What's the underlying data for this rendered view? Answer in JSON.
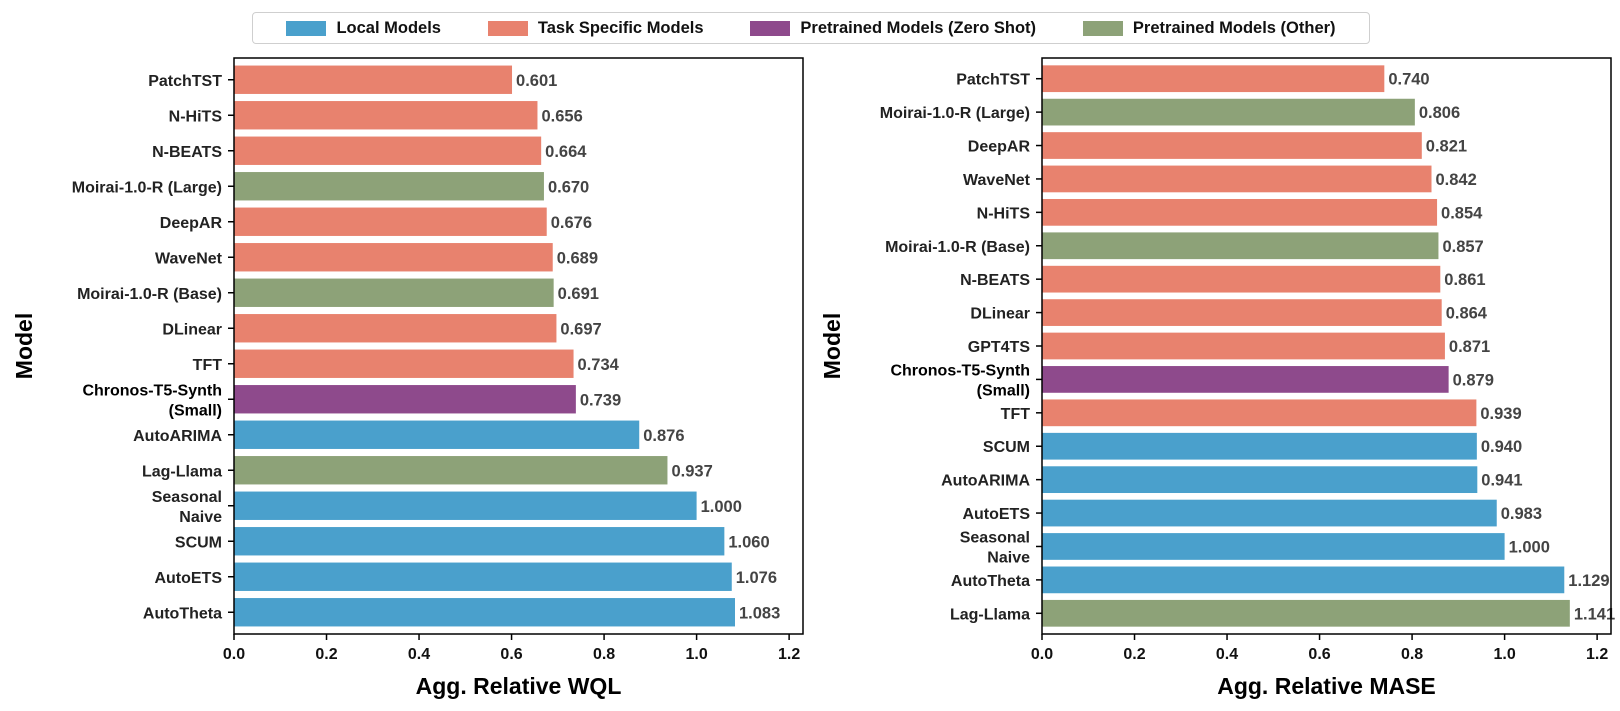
{
  "legend": {
    "items": [
      {
        "key": "local",
        "label": "Local Models",
        "color": "#4aa0cc"
      },
      {
        "key": "task",
        "label": "Task Specific Models",
        "color": "#e8826e"
      },
      {
        "key": "zero",
        "label": "Pretrained Models (Zero Shot)",
        "color": "#8e4a8c"
      },
      {
        "key": "other",
        "label": "Pretrained Models (Other)",
        "color": "#8da278"
      }
    ]
  },
  "chart_data": [
    {
      "type": "bar",
      "orientation": "horizontal",
      "xlabel": "Agg. Relative WQL",
      "ylabel": "Model",
      "xlim": [
        0,
        1.23
      ],
      "xticks": [
        "0.0",
        "0.2",
        "0.4",
        "0.6",
        "0.8",
        "1.0",
        "1.2"
      ],
      "categories": [
        {
          "label": [
            "PatchTST"
          ],
          "value": 0.601,
          "value_label": "0.601",
          "group": "task"
        },
        {
          "label": [
            "N-HiTS"
          ],
          "value": 0.656,
          "value_label": "0.656",
          "group": "task"
        },
        {
          "label": [
            "N-BEATS"
          ],
          "value": 0.664,
          "value_label": "0.664",
          "group": "task"
        },
        {
          "label": [
            "Moirai-1.0-R (Large)"
          ],
          "value": 0.67,
          "value_label": "0.670",
          "group": "other"
        },
        {
          "label": [
            "DeepAR"
          ],
          "value": 0.676,
          "value_label": "0.676",
          "group": "task"
        },
        {
          "label": [
            "WaveNet"
          ],
          "value": 0.689,
          "value_label": "0.689",
          "group": "task"
        },
        {
          "label": [
            "Moirai-1.0-R (Base)"
          ],
          "value": 0.691,
          "value_label": "0.691",
          "group": "other"
        },
        {
          "label": [
            "DLinear"
          ],
          "value": 0.697,
          "value_label": "0.697",
          "group": "task"
        },
        {
          "label": [
            "TFT"
          ],
          "value": 0.734,
          "value_label": "0.734",
          "group": "task"
        },
        {
          "label": [
            "Chronos-T5-Synth",
            "(Small)"
          ],
          "value": 0.739,
          "value_label": "0.739",
          "group": "zero",
          "highlight": true
        },
        {
          "label": [
            "AutoARIMA"
          ],
          "value": 0.876,
          "value_label": "0.876",
          "group": "local"
        },
        {
          "label": [
            "Lag-Llama"
          ],
          "value": 0.937,
          "value_label": "0.937",
          "group": "other"
        },
        {
          "label": [
            "Seasonal",
            "Naive"
          ],
          "value": 1.0,
          "value_label": "1.000",
          "group": "local"
        },
        {
          "label": [
            "SCUM"
          ],
          "value": 1.06,
          "value_label": "1.060",
          "group": "local"
        },
        {
          "label": [
            "AutoETS"
          ],
          "value": 1.076,
          "value_label": "1.076",
          "group": "local"
        },
        {
          "label": [
            "AutoTheta"
          ],
          "value": 1.083,
          "value_label": "1.083",
          "group": "local"
        }
      ]
    },
    {
      "type": "bar",
      "orientation": "horizontal",
      "xlabel": "Agg. Relative MASE",
      "ylabel": "Model",
      "xlim": [
        0,
        1.23
      ],
      "xticks": [
        "0.0",
        "0.2",
        "0.4",
        "0.6",
        "0.8",
        "1.0",
        "1.2"
      ],
      "categories": [
        {
          "label": [
            "PatchTST"
          ],
          "value": 0.74,
          "value_label": "0.740",
          "group": "task"
        },
        {
          "label": [
            "Moirai-1.0-R (Large)"
          ],
          "value": 0.806,
          "value_label": "0.806",
          "group": "other"
        },
        {
          "label": [
            "DeepAR"
          ],
          "value": 0.821,
          "value_label": "0.821",
          "group": "task"
        },
        {
          "label": [
            "WaveNet"
          ],
          "value": 0.842,
          "value_label": "0.842",
          "group": "task"
        },
        {
          "label": [
            "N-HiTS"
          ],
          "value": 0.854,
          "value_label": "0.854",
          "group": "task"
        },
        {
          "label": [
            "Moirai-1.0-R (Base)"
          ],
          "value": 0.857,
          "value_label": "0.857",
          "group": "other"
        },
        {
          "label": [
            "N-BEATS"
          ],
          "value": 0.861,
          "value_label": "0.861",
          "group": "task"
        },
        {
          "label": [
            "DLinear"
          ],
          "value": 0.864,
          "value_label": "0.864",
          "group": "task"
        },
        {
          "label": [
            "GPT4TS"
          ],
          "value": 0.871,
          "value_label": "0.871",
          "group": "task"
        },
        {
          "label": [
            "Chronos-T5-Synth",
            "(Small)"
          ],
          "value": 0.879,
          "value_label": "0.879",
          "group": "zero",
          "highlight": true
        },
        {
          "label": [
            "TFT"
          ],
          "value": 0.939,
          "value_label": "0.939",
          "group": "task"
        },
        {
          "label": [
            "SCUM"
          ],
          "value": 0.94,
          "value_label": "0.940",
          "group": "local"
        },
        {
          "label": [
            "AutoARIMA"
          ],
          "value": 0.941,
          "value_label": "0.941",
          "group": "local"
        },
        {
          "label": [
            "AutoETS"
          ],
          "value": 0.983,
          "value_label": "0.983",
          "group": "local"
        },
        {
          "label": [
            "Seasonal",
            "Naive"
          ],
          "value": 1.0,
          "value_label": "1.000",
          "group": "local"
        },
        {
          "label": [
            "AutoTheta"
          ],
          "value": 1.129,
          "value_label": "1.129",
          "group": "local"
        },
        {
          "label": [
            "Lag-Llama"
          ],
          "value": 1.141,
          "value_label": "1.141",
          "group": "other"
        }
      ]
    }
  ]
}
